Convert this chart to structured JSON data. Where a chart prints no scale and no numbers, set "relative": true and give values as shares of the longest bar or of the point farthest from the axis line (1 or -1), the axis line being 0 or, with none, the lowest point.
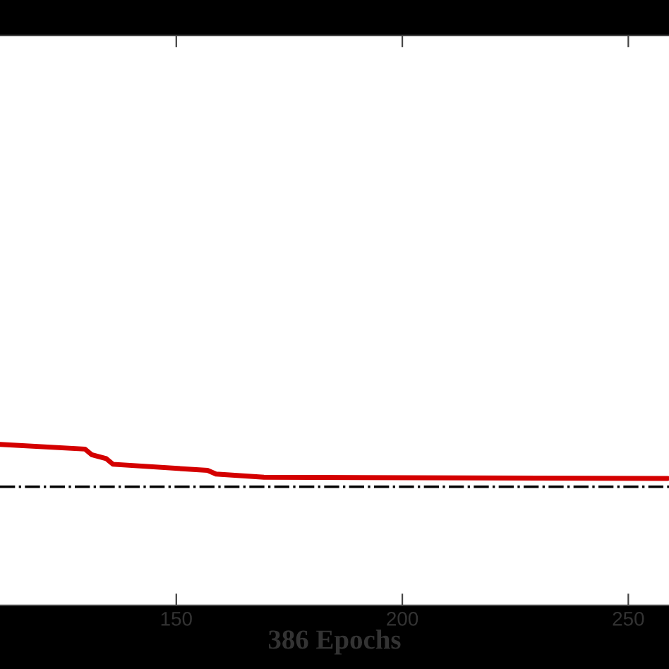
{
  "chart_data": {
    "type": "line",
    "xlabel": "386 Epochs",
    "relative": true,
    "xlim": [
      111,
      259
    ],
    "xticks": [
      150,
      200,
      250
    ],
    "series": [
      {
        "color": "#d40000",
        "x": [
          111.1,
          129.8,
          131.3,
          134.5,
          136.0,
          156.9,
          158.8,
          169.4,
          258.7
        ],
        "values": [
          1.0,
          0.971,
          0.936,
          0.912,
          0.877,
          0.839,
          0.816,
          0.796,
          0.789
        ]
      }
    ],
    "ref_lines": [
      {
        "axis": "y",
        "value": 0.737,
        "color": "#000000",
        "line_style": "dashdot"
      }
    ],
    "grid": false,
    "marker": "none",
    "line_style": "solid"
  }
}
